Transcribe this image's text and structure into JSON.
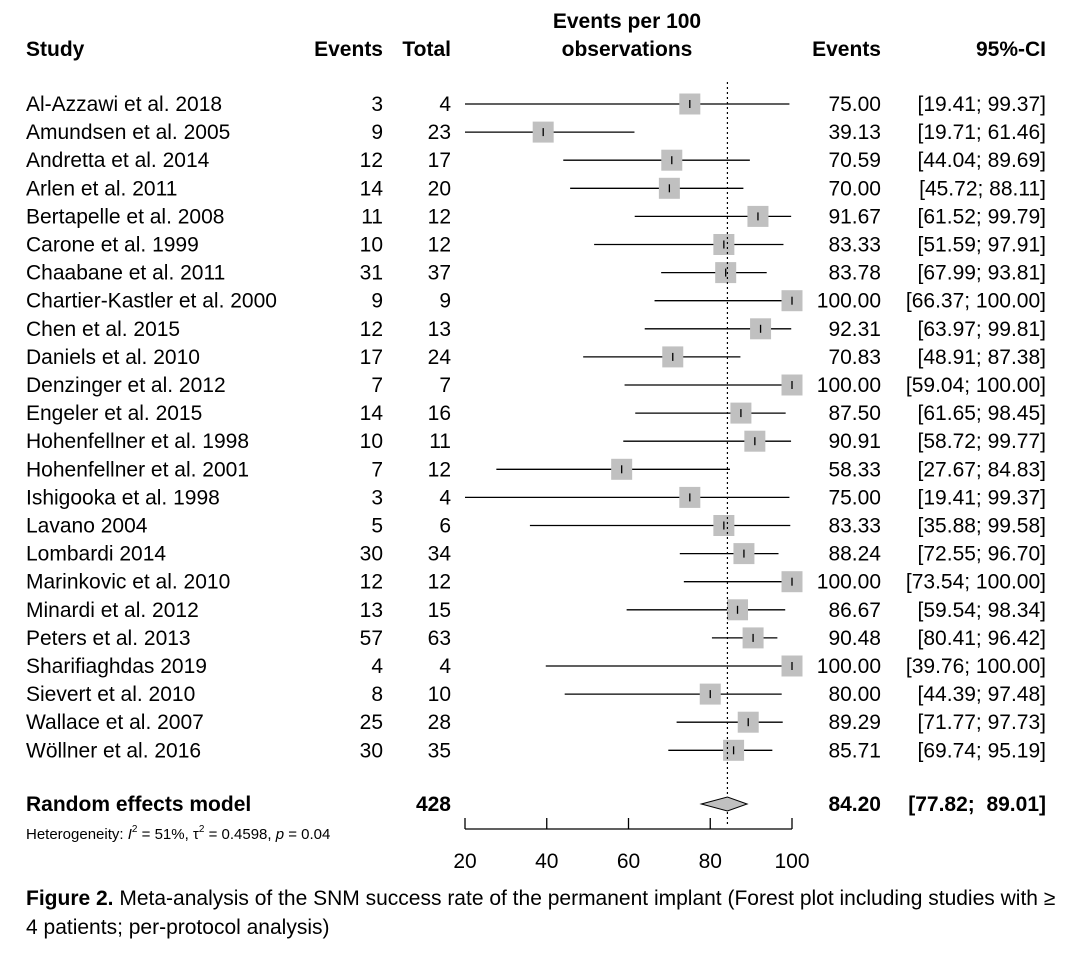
{
  "headers": {
    "study": "Study",
    "events": "Events",
    "total": "Total",
    "plot_line1": "Events per 100",
    "plot_line2": "observations",
    "events_est": "Events",
    "ci": "95%-CI"
  },
  "chart_data": {
    "type": "forest",
    "xlim": [
      20,
      100
    ],
    "ticks": [
      20,
      40,
      60,
      80,
      100
    ],
    "reference_line": 84.2,
    "studies": [
      {
        "study": "Al-Azzawi et al. 2018",
        "events": "3",
        "total": "4",
        "est": 75.0,
        "lo": 19.41,
        "hi": 99.37,
        "est_text": "75.00",
        "ci_text": "[19.41;  99.37]"
      },
      {
        "study": "Amundsen et al. 2005",
        "events": "9",
        "total": "23",
        "est": 39.13,
        "lo": 19.71,
        "hi": 61.46,
        "est_text": "39.13",
        "ci_text": "[19.71;  61.46]"
      },
      {
        "study": "Andretta et al. 2014",
        "events": "12",
        "total": "17",
        "est": 70.59,
        "lo": 44.04,
        "hi": 89.69,
        "est_text": "70.59",
        "ci_text": "[44.04;  89.69]"
      },
      {
        "study": "Arlen et al. 2011",
        "events": "14",
        "total": "20",
        "est": 70.0,
        "lo": 45.72,
        "hi": 88.11,
        "est_text": "70.00",
        "ci_text": "[45.72;  88.11]"
      },
      {
        "study": "Bertapelle et al. 2008",
        "events": "11",
        "total": "12",
        "est": 91.67,
        "lo": 61.52,
        "hi": 99.79,
        "est_text": "91.67",
        "ci_text": "[61.52;  99.79]"
      },
      {
        "study": "Carone et al. 1999",
        "events": "10",
        "total": "12",
        "est": 83.33,
        "lo": 51.59,
        "hi": 97.91,
        "est_text": "83.33",
        "ci_text": "[51.59;  97.91]"
      },
      {
        "study": "Chaabane et al. 2011",
        "events": "31",
        "total": "37",
        "est": 83.78,
        "lo": 67.99,
        "hi": 93.81,
        "est_text": "83.78",
        "ci_text": "[67.99;  93.81]"
      },
      {
        "study": "Chartier-Kastler et al. 2000",
        "events": "9",
        "total": "9",
        "est": 100.0,
        "lo": 66.37,
        "hi": 100.0,
        "est_text": "100.00",
        "ci_text": "[66.37; 100.00]"
      },
      {
        "study": "Chen et al. 2015",
        "events": "12",
        "total": "13",
        "est": 92.31,
        "lo": 63.97,
        "hi": 99.81,
        "est_text": "92.31",
        "ci_text": "[63.97;  99.81]"
      },
      {
        "study": "Daniels et al. 2010",
        "events": "17",
        "total": "24",
        "est": 70.83,
        "lo": 48.91,
        "hi": 87.38,
        "est_text": "70.83",
        "ci_text": "[48.91;  87.38]"
      },
      {
        "study": "Denzinger et al. 2012",
        "events": "7",
        "total": "7",
        "est": 100.0,
        "lo": 59.04,
        "hi": 100.0,
        "est_text": "100.00",
        "ci_text": "[59.04; 100.00]"
      },
      {
        "study": "Engeler et al. 2015",
        "events": "14",
        "total": "16",
        "est": 87.5,
        "lo": 61.65,
        "hi": 98.45,
        "est_text": "87.50",
        "ci_text": "[61.65;  98.45]"
      },
      {
        "study": "Hohenfellner et al. 1998",
        "events": "10",
        "total": "11",
        "est": 90.91,
        "lo": 58.72,
        "hi": 99.77,
        "est_text": "90.91",
        "ci_text": "[58.72;  99.77]"
      },
      {
        "study": "Hohenfellner et al. 2001",
        "events": "7",
        "total": "12",
        "est": 58.33,
        "lo": 27.67,
        "hi": 84.83,
        "est_text": "58.33",
        "ci_text": "[27.67;  84.83]"
      },
      {
        "study": "Ishigooka et al. 1998",
        "events": "3",
        "total": "4",
        "est": 75.0,
        "lo": 19.41,
        "hi": 99.37,
        "est_text": "75.00",
        "ci_text": "[19.41;  99.37]"
      },
      {
        "study": "Lavano 2004",
        "events": "5",
        "total": "6",
        "est": 83.33,
        "lo": 35.88,
        "hi": 99.58,
        "est_text": "83.33",
        "ci_text": "[35.88;  99.58]"
      },
      {
        "study": "Lombardi 2014",
        "events": "30",
        "total": "34",
        "est": 88.24,
        "lo": 72.55,
        "hi": 96.7,
        "est_text": "88.24",
        "ci_text": "[72.55;  96.70]"
      },
      {
        "study": "Marinkovic et al. 2010",
        "events": "12",
        "total": "12",
        "est": 100.0,
        "lo": 73.54,
        "hi": 100.0,
        "est_text": "100.00",
        "ci_text": "[73.54; 100.00]"
      },
      {
        "study": "Minardi et al. 2012",
        "events": "13",
        "total": "15",
        "est": 86.67,
        "lo": 59.54,
        "hi": 98.34,
        "est_text": "86.67",
        "ci_text": "[59.54;  98.34]"
      },
      {
        "study": "Peters et al. 2013",
        "events": "57",
        "total": "63",
        "est": 90.48,
        "lo": 80.41,
        "hi": 96.42,
        "est_text": "90.48",
        "ci_text": "[80.41;  96.42]"
      },
      {
        "study": "Sharifiaghdas 2019",
        "events": "4",
        "total": "4",
        "est": 100.0,
        "lo": 39.76,
        "hi": 100.0,
        "est_text": "100.00",
        "ci_text": "[39.76; 100.00]"
      },
      {
        "study": "Sievert et al. 2010",
        "events": "8",
        "total": "10",
        "est": 80.0,
        "lo": 44.39,
        "hi": 97.48,
        "est_text": "80.00",
        "ci_text": "[44.39;  97.48]"
      },
      {
        "study": "Wallace et al. 2007",
        "events": "25",
        "total": "28",
        "est": 89.29,
        "lo": 71.77,
        "hi": 97.73,
        "est_text": "89.29",
        "ci_text": "[71.77;  97.73]"
      },
      {
        "study": "Wöllner et al. 2016",
        "events": "30",
        "total": "35",
        "est": 85.71,
        "lo": 69.74,
        "hi": 95.19,
        "est_text": "85.71",
        "ci_text": "[69.74;  95.19]"
      }
    ],
    "summary": {
      "label": "Random effects model",
      "total": "428",
      "est": 84.2,
      "lo": 77.82,
      "hi": 89.01,
      "est_text": "84.20",
      "ci_text": "[77.82;  89.01]"
    },
    "heterogeneity": {
      "prefix": "Heterogeneity: ",
      "i2_sym": "I",
      "i2_sup": "2",
      "i2_val": " = 51%, ",
      "tau_sym": "τ",
      "tau_sup": "2",
      "tau_val": " = 0.4598, ",
      "p_sym": "p",
      "p_val": " = 0.04"
    }
  },
  "colors": {
    "square": "#c0c0c0",
    "diamond": "#c0c0c0",
    "line": "#000000"
  },
  "caption": {
    "label": "Figure 2.",
    "text": " Meta-analysis of the SNM success rate of the permanent implant (Forest plot including studies with ≥ 4 patients; per-protocol analysis)"
  }
}
